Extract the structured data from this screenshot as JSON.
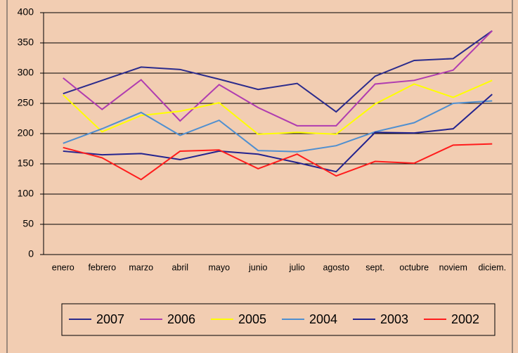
{
  "chart_data": {
    "type": "line",
    "categories": [
      "enero",
      "febrero",
      "marzo",
      "abril",
      "mayo",
      "junio",
      "julio",
      "agosto",
      "sept.",
      "octubre",
      "noviem",
      "diciem."
    ],
    "series": [
      {
        "name": "2007",
        "color": "#2b2b8c",
        "values": [
          266,
          288,
          310,
          306,
          290,
          273,
          283,
          236,
          295,
          321,
          324,
          370
        ]
      },
      {
        "name": "2006",
        "color": "#b03cb0",
        "values": [
          292,
          240,
          289,
          221,
          281,
          243,
          213,
          213,
          282,
          288,
          305,
          370
        ]
      },
      {
        "name": "2005",
        "color": "#ffff00",
        "values": [
          264,
          203,
          230,
          237,
          251,
          199,
          202,
          199,
          249,
          282,
          260,
          288
        ]
      },
      {
        "name": "2004",
        "color": "#4f8fd0",
        "values": [
          184,
          208,
          235,
          197,
          222,
          172,
          170,
          180,
          203,
          218,
          250,
          254
        ]
      },
      {
        "name": "2003",
        "color": "#23238f",
        "values": [
          171,
          165,
          167,
          157,
          171,
          166,
          152,
          137,
          202,
          201,
          208,
          265
        ]
      },
      {
        "name": "2002",
        "color": "#ff1c1c",
        "values": [
          177,
          160,
          124,
          171,
          173,
          142,
          166,
          130,
          154,
          151,
          181,
          183
        ]
      }
    ],
    "ylim": [
      0,
      400
    ],
    "yticks": [
      0,
      50,
      100,
      150,
      200,
      250,
      300,
      350,
      400
    ],
    "grid": true
  }
}
